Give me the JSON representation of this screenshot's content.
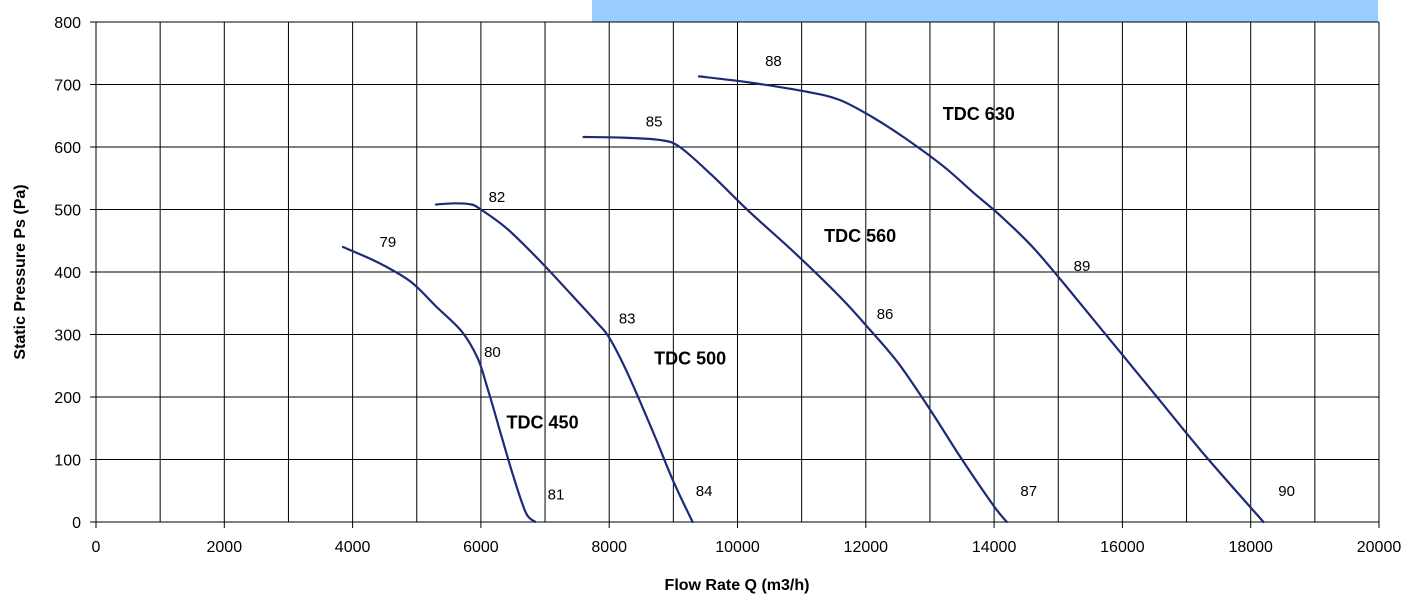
{
  "chart_data": {
    "type": "line",
    "xlabel": "Flow Rate Q (m3/h)",
    "ylabel": "Static Pressure Ps (Pa)",
    "xlim": [
      0,
      20000
    ],
    "ylim": [
      0,
      800
    ],
    "x_ticks": [
      "0",
      "2000",
      "4000",
      "6000",
      "8000",
      "10000",
      "12000",
      "14000",
      "16000",
      "18000",
      "20000"
    ],
    "y_ticks": [
      "0",
      "100",
      "200",
      "300",
      "400",
      "500",
      "600",
      "700",
      "800"
    ],
    "grid": true,
    "highlight_color": "#99ccff",
    "line_color": "#1c2a78",
    "series": [
      {
        "name": "TDC 450",
        "points": [
          [
            3850,
            440
          ],
          [
            4400,
            415
          ],
          [
            4900,
            385
          ],
          [
            5300,
            345
          ],
          [
            5700,
            305
          ],
          [
            5950,
            262
          ],
          [
            6100,
            215
          ],
          [
            6300,
            145
          ],
          [
            6500,
            75
          ],
          [
            6700,
            15
          ],
          [
            6850,
            0
          ]
        ],
        "label_at": [
          6400,
          150
        ]
      },
      {
        "name": "TDC 500",
        "points": [
          [
            5300,
            508
          ],
          [
            5600,
            510
          ],
          [
            5850,
            508
          ],
          [
            6000,
            500
          ],
          [
            6400,
            470
          ],
          [
            6900,
            420
          ],
          [
            7400,
            365
          ],
          [
            7800,
            320
          ],
          [
            8000,
            295
          ],
          [
            8300,
            235
          ],
          [
            8700,
            140
          ],
          [
            9000,
            65
          ],
          [
            9300,
            0
          ]
        ],
        "label_at": [
          8700,
          252
        ]
      },
      {
        "name": "TDC 560",
        "points": [
          [
            7600,
            616
          ],
          [
            8200,
            615
          ],
          [
            8800,
            611
          ],
          [
            9100,
            600
          ],
          [
            9600,
            555
          ],
          [
            10200,
            495
          ],
          [
            10900,
            430
          ],
          [
            11600,
            360
          ],
          [
            12000,
            315
          ],
          [
            12500,
            255
          ],
          [
            13000,
            180
          ],
          [
            13500,
            100
          ],
          [
            14000,
            25
          ],
          [
            14200,
            0
          ]
        ],
        "label_at": [
          11350,
          448
        ]
      },
      {
        "name": "TDC 630",
        "points": [
          [
            9400,
            713
          ],
          [
            10200,
            703
          ],
          [
            11100,
            688
          ],
          [
            11600,
            675
          ],
          [
            12100,
            648
          ],
          [
            12600,
            615
          ],
          [
            13200,
            570
          ],
          [
            13700,
            525
          ],
          [
            14100,
            490
          ],
          [
            14600,
            440
          ],
          [
            15100,
            380
          ],
          [
            15700,
            305
          ],
          [
            16500,
            205
          ],
          [
            17300,
            105
          ],
          [
            18200,
            0
          ]
        ],
        "label_at": [
          13200,
          643
        ]
      }
    ],
    "annotations": [
      {
        "text": "79",
        "x": 4550,
        "y": 440
      },
      {
        "text": "80",
        "x": 6180,
        "y": 264
      },
      {
        "text": "81",
        "x": 7170,
        "y": 36
      },
      {
        "text": "82",
        "x": 6250,
        "y": 512
      },
      {
        "text": "83",
        "x": 8280,
        "y": 318
      },
      {
        "text": "84",
        "x": 9480,
        "y": 42
      },
      {
        "text": "85",
        "x": 8700,
        "y": 633
      },
      {
        "text": "86",
        "x": 12300,
        "y": 325
      },
      {
        "text": "87",
        "x": 14540,
        "y": 42
      },
      {
        "text": "88",
        "x": 10560,
        "y": 730
      },
      {
        "text": "89",
        "x": 15370,
        "y": 402
      },
      {
        "text": "90",
        "x": 18560,
        "y": 42
      }
    ]
  }
}
